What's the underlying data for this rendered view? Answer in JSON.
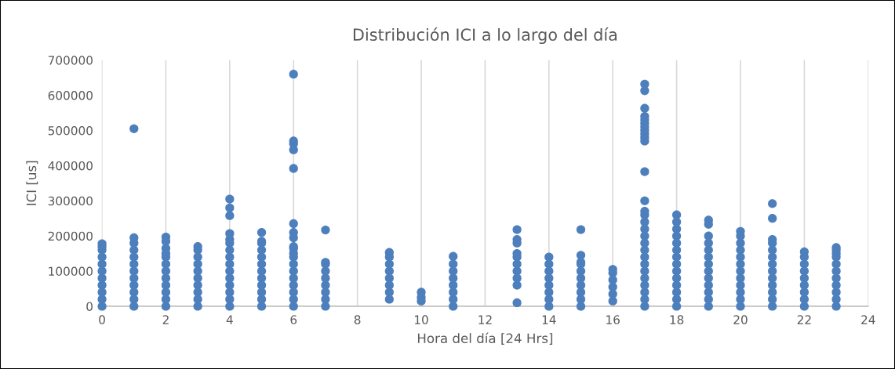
{
  "chart_data": {
    "type": "scatter",
    "title": "Distribución ICI a lo largo del día",
    "xlabel": "Hora del día [24 Hrs]",
    "ylabel": "ICI [us]",
    "series": [
      {
        "color": "#4e7fbd",
        "x": [
          0,
          0,
          0,
          0,
          0,
          0,
          0,
          0,
          0,
          0,
          0,
          1,
          1,
          1,
          1,
          1,
          1,
          1,
          1,
          1,
          1,
          1,
          1,
          2,
          2,
          2,
          2,
          2,
          2,
          2,
          2,
          2,
          2,
          2,
          2,
          3,
          3,
          3,
          3,
          3,
          3,
          3,
          3,
          3,
          3,
          4,
          4,
          4,
          4,
          4,
          4,
          4,
          4,
          4,
          4,
          4,
          4,
          4,
          4,
          4,
          5,
          5,
          5,
          5,
          5,
          5,
          5,
          5,
          5,
          5,
          5,
          5,
          6,
          6,
          6,
          6,
          6,
          6,
          6,
          6,
          6,
          6,
          6,
          6,
          6,
          6,
          6,
          6,
          6,
          6,
          6,
          7,
          7,
          7,
          7,
          7,
          7,
          7,
          7,
          7,
          9,
          9,
          9,
          9,
          9,
          9,
          9,
          9,
          10,
          10,
          10,
          11,
          11,
          11,
          11,
          11,
          11,
          11,
          11,
          13,
          13,
          13,
          13,
          13,
          13,
          13,
          13,
          13,
          13,
          14,
          14,
          14,
          14,
          14,
          14,
          14,
          14,
          15,
          15,
          15,
          15,
          15,
          15,
          15,
          15,
          15,
          15,
          16,
          16,
          16,
          16,
          16,
          16,
          17,
          17,
          17,
          17,
          17,
          17,
          17,
          17,
          17,
          17,
          17,
          17,
          17,
          17,
          17,
          17,
          17,
          17,
          17,
          17,
          17,
          17,
          17,
          17,
          17,
          17,
          17,
          17,
          18,
          18,
          18,
          18,
          18,
          18,
          18,
          18,
          18,
          18,
          18,
          18,
          18,
          18,
          19,
          19,
          19,
          19,
          19,
          19,
          19,
          19,
          19,
          19,
          19,
          19,
          19,
          20,
          20,
          20,
          20,
          20,
          20,
          20,
          20,
          20,
          20,
          20,
          20,
          21,
          21,
          21,
          21,
          21,
          21,
          21,
          21,
          21,
          21,
          21,
          21,
          21,
          22,
          22,
          22,
          22,
          22,
          22,
          22,
          22,
          22,
          23,
          23,
          23,
          23,
          23,
          23,
          23,
          23,
          23,
          23,
          23
        ],
        "values": [
          0,
          20000,
          40000,
          60000,
          80000,
          100000,
          120000,
          140000,
          160000,
          170000,
          178000,
          0,
          20000,
          40000,
          60000,
          80000,
          100000,
          120000,
          140000,
          160000,
          180000,
          195000,
          505000,
          0,
          20000,
          40000,
          60000,
          80000,
          100000,
          120000,
          140000,
          150000,
          165000,
          185000,
          197000,
          0,
          20000,
          40000,
          60000,
          80000,
          100000,
          120000,
          140000,
          160000,
          170000,
          0,
          20000,
          40000,
          60000,
          80000,
          100000,
          120000,
          140000,
          160000,
          180000,
          190000,
          207000,
          258000,
          280000,
          305000,
          0,
          20000,
          40000,
          60000,
          80000,
          100000,
          120000,
          140000,
          160000,
          180000,
          185000,
          210000,
          0,
          20000,
          40000,
          60000,
          80000,
          100000,
          120000,
          140000,
          150000,
          165000,
          170000,
          195000,
          210000,
          235000,
          392000,
          445000,
          462000,
          470000,
          660000,
          0,
          20000,
          40000,
          60000,
          80000,
          100000,
          120000,
          125000,
          217000,
          20000,
          40000,
          60000,
          80000,
          100000,
          120000,
          140000,
          153000,
          15000,
          25000,
          40000,
          0,
          20000,
          40000,
          60000,
          80000,
          100000,
          120000,
          142000,
          10000,
          60000,
          80000,
          100000,
          120000,
          140000,
          150000,
          180000,
          190000,
          218000,
          0,
          20000,
          40000,
          60000,
          80000,
          100000,
          120000,
          140000,
          0,
          20000,
          40000,
          60000,
          80000,
          100000,
          120000,
          125000,
          145000,
          218000,
          15000,
          35000,
          55000,
          75000,
          95000,
          105000,
          0,
          20000,
          40000,
          60000,
          80000,
          100000,
          120000,
          140000,
          160000,
          180000,
          200000,
          220000,
          240000,
          260000,
          270000,
          300000,
          383000,
          470000,
          480000,
          490000,
          500000,
          510000,
          520000,
          530000,
          540000,
          563000,
          613000,
          632000,
          0,
          20000,
          40000,
          60000,
          80000,
          100000,
          120000,
          140000,
          160000,
          180000,
          200000,
          220000,
          240000,
          260000,
          0,
          20000,
          40000,
          60000,
          80000,
          100000,
          120000,
          140000,
          160000,
          180000,
          200000,
          233000,
          245000,
          0,
          20000,
          40000,
          60000,
          80000,
          100000,
          120000,
          140000,
          160000,
          180000,
          200000,
          213000,
          0,
          20000,
          40000,
          60000,
          80000,
          100000,
          120000,
          140000,
          160000,
          180000,
          190000,
          250000,
          292000,
          0,
          20000,
          40000,
          60000,
          80000,
          100000,
          120000,
          140000,
          155000,
          0,
          20000,
          40000,
          60000,
          80000,
          100000,
          120000,
          140000,
          150000,
          160000,
          167000
        ]
      }
    ],
    "xlim": [
      0,
      24
    ],
    "xticks": [
      0,
      2,
      4,
      6,
      8,
      10,
      12,
      14,
      16,
      18,
      20,
      22,
      24
    ],
    "ylim": [
      0,
      700000
    ],
    "yticks": [
      0,
      100000,
      200000,
      300000,
      400000,
      500000,
      600000,
      700000
    ],
    "grid": "x",
    "marker": "circle"
  }
}
